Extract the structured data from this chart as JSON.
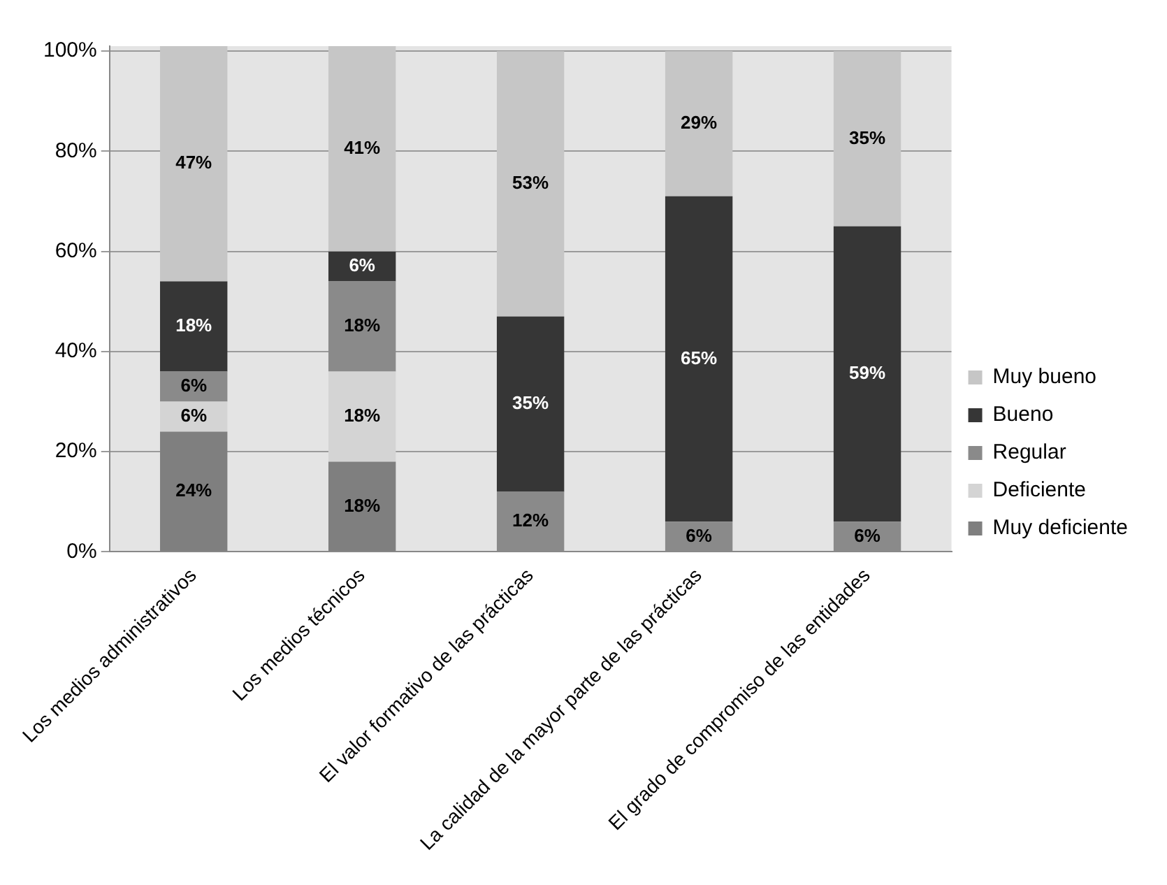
{
  "chart_data": {
    "type": "bar",
    "stacked": true,
    "categories": [
      "Los medios administrativos",
      "Los medios técnicos",
      "El valor formativo de las prácticas",
      "La calidad de la mayor parte de las prácticas",
      "El grado de compromiso de las entidades"
    ],
    "series": [
      {
        "name": "Muy deficiente",
        "color": "#7f7f7f",
        "values": [
          24,
          18,
          null,
          null,
          null
        ],
        "value_labels": [
          "24%",
          "18%",
          null,
          null,
          null
        ]
      },
      {
        "name": "Deficiente",
        "color": "#d4d4d4",
        "values": [
          6,
          18,
          null,
          null,
          null
        ],
        "value_labels": [
          "6%",
          "18%",
          null,
          null,
          null
        ]
      },
      {
        "name": "Regular",
        "color": "#8a8a8a",
        "values": [
          6,
          18,
          12,
          6,
          6
        ],
        "value_labels": [
          "6%",
          "18%",
          "12%",
          "6%",
          "6%"
        ]
      },
      {
        "name": "Bueno",
        "color": "#363636",
        "values": [
          18,
          6,
          35,
          65,
          59
        ],
        "value_labels": [
          "18%",
          "6%",
          "35%",
          "65%",
          "59%"
        ]
      },
      {
        "name": "Muy bueno",
        "color": "#c6c6c6",
        "values": [
          47,
          41,
          53,
          29,
          35
        ],
        "value_labels": [
          "47%",
          "41%",
          "53%",
          "29%",
          "35%"
        ]
      }
    ],
    "ylim": [
      0,
      101
    ],
    "yticks": [
      {
        "value": 0,
        "label": "0%"
      },
      {
        "value": 20,
        "label": "20%"
      },
      {
        "value": 40,
        "label": "40%"
      },
      {
        "value": 60,
        "label": "60%"
      },
      {
        "value": 80,
        "label": "80%"
      },
      {
        "value": 100,
        "label": "100%"
      }
    ],
    "grid": "y",
    "legend": "right"
  }
}
